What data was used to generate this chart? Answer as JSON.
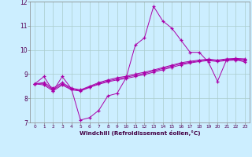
{
  "xlabel": "Windchill (Refroidissement éolien,°C)",
  "background_color": "#cceeff",
  "grid_color": "#aacccc",
  "line_color": "#aa00aa",
  "x_values": [
    0,
    1,
    2,
    3,
    4,
    5,
    6,
    7,
    8,
    9,
    10,
    11,
    12,
    13,
    14,
    15,
    16,
    17,
    18,
    19,
    20,
    21,
    22,
    23
  ],
  "line1": [
    8.6,
    8.9,
    8.3,
    8.9,
    8.4,
    7.1,
    7.2,
    7.5,
    8.1,
    8.2,
    8.85,
    10.2,
    10.5,
    11.8,
    11.2,
    10.9,
    10.4,
    9.9,
    9.9,
    9.5,
    8.7,
    9.6,
    9.6,
    9.5
  ],
  "line2": [
    8.6,
    8.55,
    8.3,
    8.55,
    8.35,
    8.3,
    8.45,
    8.58,
    8.68,
    8.76,
    8.82,
    8.9,
    8.98,
    9.08,
    9.18,
    9.28,
    9.38,
    9.46,
    9.52,
    9.56,
    9.52,
    9.56,
    9.58,
    9.56
  ],
  "line3": [
    8.6,
    8.6,
    8.35,
    8.6,
    8.38,
    8.32,
    8.47,
    8.61,
    8.72,
    8.8,
    8.87,
    8.95,
    9.03,
    9.13,
    9.23,
    9.33,
    9.43,
    9.49,
    9.55,
    9.59,
    9.55,
    9.6,
    9.62,
    9.6
  ],
  "line4": [
    8.6,
    8.65,
    8.42,
    8.65,
    8.42,
    8.35,
    8.5,
    8.65,
    8.76,
    8.85,
    8.91,
    9.0,
    9.08,
    9.17,
    9.27,
    9.37,
    9.47,
    9.53,
    9.58,
    9.62,
    9.58,
    9.63,
    9.65,
    9.63
  ],
  "ylim": [
    7,
    12
  ],
  "xlim": [
    -0.5,
    23.5
  ],
  "yticks": [
    7,
    8,
    9,
    10,
    11,
    12
  ],
  "xticks": [
    0,
    1,
    2,
    3,
    4,
    5,
    6,
    7,
    8,
    9,
    10,
    11,
    12,
    13,
    14,
    15,
    16,
    17,
    18,
    19,
    20,
    21,
    22,
    23
  ]
}
